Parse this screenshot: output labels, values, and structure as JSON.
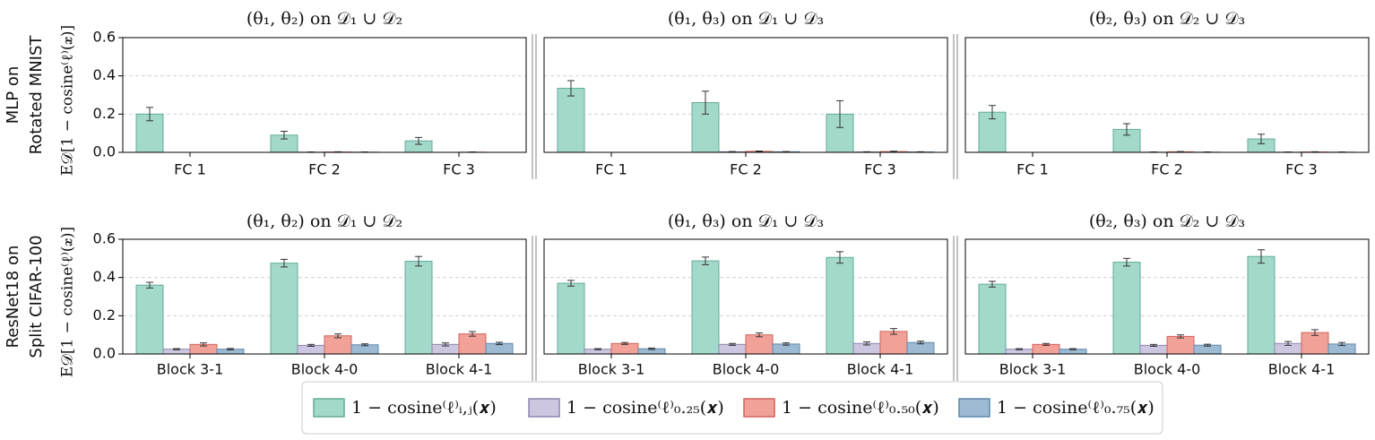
{
  "chart_data": [
    {
      "type": "bar",
      "title": "(θ₁, θ₂) on 𝒟₁ ∪ 𝒟₂",
      "row_label": [
        "MLP on",
        "Rotated MNIST"
      ],
      "ylabel": "E𝒟[1 − cosine⁽ℓ⁾(𝒙)]",
      "legend": "bottom",
      "categories": [
        "FC 1",
        "FC 2",
        "FC 3"
      ],
      "ylim": [
        0,
        0.6
      ],
      "yticks": [
        {
          "value": 0,
          "label": "0.0"
        },
        0.2,
        0.4,
        0.6
      ],
      "grid": true,
      "series": [
        {
          "name": "1 − cosine⁽ℓ⁾ᵢ,ⱼ(𝒙)",
          "color": "#a3d9ca",
          "edgecolor": "#62ab98",
          "values": [
            0.2,
            0.09,
            0.06
          ],
          "errors": [
            0.035,
            0.02,
            0.018
          ]
        },
        {
          "name": "1 − cosine⁽ℓ⁾₀.₂₅(𝒙)",
          "color": "#cdc6e0",
          "edgecolor": "#8f86b0",
          "values": [
            0,
            0.001,
            0
          ],
          "errors": [
            0,
            0.001,
            0
          ]
        },
        {
          "name": "1 − cosine⁽ℓ⁾₀.₅₀(𝒙)",
          "color": "#f2a198",
          "edgecolor": "#cf645a",
          "values": [
            0,
            0.002,
            0.001
          ],
          "errors": [
            0,
            0.001,
            0.001
          ]
        },
        {
          "name": "1 − cosine⁽ℓ⁾₀.₇₅(𝒙)",
          "color": "#9dbad3",
          "edgecolor": "#5e88ad",
          "values": [
            0,
            0.001,
            0
          ],
          "errors": [
            0,
            0.001,
            0
          ]
        }
      ]
    },
    {
      "type": "bar",
      "title": "(θ₁, θ₃) on 𝒟₁ ∪ 𝒟₃",
      "sharey": true,
      "categories": [
        "FC 1",
        "FC 2",
        "FC 3"
      ],
      "ylim": [
        0,
        0.6
      ],
      "yticks": [
        0,
        0.2,
        0.4,
        0.6
      ],
      "grid": true,
      "series": [
        {
          "color": "#a3d9ca",
          "edgecolor": "#62ab98",
          "values": [
            0.335,
            0.26,
            0.2
          ],
          "errors": [
            0.04,
            0.06,
            0.07
          ]
        },
        {
          "color": "#cdc6e0",
          "edgecolor": "#8f86b0",
          "values": [
            0,
            0.003,
            0.002
          ],
          "errors": [
            0,
            0.001,
            0.001
          ]
        },
        {
          "color": "#f2a198",
          "edgecolor": "#cf645a",
          "values": [
            0,
            0.005,
            0.004
          ],
          "errors": [
            0,
            0.002,
            0.002
          ]
        },
        {
          "color": "#9dbad3",
          "edgecolor": "#5e88ad",
          "values": [
            0,
            0.003,
            0.002
          ],
          "errors": [
            0,
            0.001,
            0.001
          ]
        }
      ]
    },
    {
      "type": "bar",
      "title": "(θ₂, θ₃) on 𝒟₂ ∪ 𝒟₃",
      "sharey": true,
      "categories": [
        "FC 1",
        "FC 2",
        "FC 3"
      ],
      "ylim": [
        0,
        0.6
      ],
      "yticks": [
        0,
        0.2,
        0.4,
        0.6
      ],
      "grid": true,
      "series": [
        {
          "color": "#a3d9ca",
          "edgecolor": "#62ab98",
          "values": [
            0.21,
            0.12,
            0.07
          ],
          "errors": [
            0.035,
            0.03,
            0.025
          ]
        },
        {
          "color": "#cdc6e0",
          "edgecolor": "#8f86b0",
          "values": [
            0,
            0.001,
            0.001
          ],
          "errors": [
            0,
            0.001,
            0.001
          ]
        },
        {
          "color": "#f2a198",
          "edgecolor": "#cf645a",
          "values": [
            0,
            0.003,
            0.002
          ],
          "errors": [
            0,
            0.001,
            0.001
          ]
        },
        {
          "color": "#9dbad3",
          "edgecolor": "#5e88ad",
          "values": [
            0,
            0.001,
            0.001
          ],
          "errors": [
            0,
            0.001,
            0.001
          ]
        }
      ]
    },
    {
      "type": "bar",
      "title": "(θ₁, θ₂) on 𝒟₁ ∪ 𝒟₂",
      "row_label": [
        "ResNet18 on",
        "Split CIFAR-100"
      ],
      "ylabel": "E𝒟[1 − cosine⁽ℓ⁾(𝒙)]",
      "categories": [
        "Block 3-1",
        "Block 4-0",
        "Block 4-1"
      ],
      "ylim": [
        0,
        0.6
      ],
      "yticks": [
        {
          "value": 0,
          "label": "0.0"
        },
        0.2,
        0.4,
        0.6
      ],
      "grid": true,
      "series": [
        {
          "color": "#a3d9ca",
          "edgecolor": "#62ab98",
          "values": [
            0.36,
            0.475,
            0.485
          ],
          "errors": [
            0.015,
            0.02,
            0.025
          ]
        },
        {
          "color": "#cdc6e0",
          "edgecolor": "#8f86b0",
          "values": [
            0.025,
            0.045,
            0.05
          ],
          "errors": [
            0.003,
            0.005,
            0.008
          ]
        },
        {
          "color": "#f2a198",
          "edgecolor": "#cf645a",
          "values": [
            0.05,
            0.095,
            0.105
          ],
          "errors": [
            0.008,
            0.01,
            0.012
          ]
        },
        {
          "color": "#9dbad3",
          "edgecolor": "#5e88ad",
          "values": [
            0.025,
            0.048,
            0.055
          ],
          "errors": [
            0.004,
            0.005,
            0.006
          ]
        }
      ]
    },
    {
      "type": "bar",
      "title": "(θ₁, θ₃) on 𝒟₁ ∪ 𝒟₃",
      "sharey": true,
      "categories": [
        "Block 3-1",
        "Block 4-0",
        "Block 4-1"
      ],
      "ylim": [
        0,
        0.6
      ],
      "yticks": [
        0,
        0.2,
        0.4,
        0.6
      ],
      "grid": true,
      "series": [
        {
          "color": "#a3d9ca",
          "edgecolor": "#62ab98",
          "values": [
            0.37,
            0.487,
            0.505
          ],
          "errors": [
            0.015,
            0.02,
            0.03
          ]
        },
        {
          "color": "#cdc6e0",
          "edgecolor": "#8f86b0",
          "values": [
            0.025,
            0.05,
            0.055
          ],
          "errors": [
            0.003,
            0.005,
            0.008
          ]
        },
        {
          "color": "#f2a198",
          "edgecolor": "#cf645a",
          "values": [
            0.055,
            0.1,
            0.118
          ],
          "errors": [
            0.005,
            0.01,
            0.015
          ]
        },
        {
          "color": "#9dbad3",
          "edgecolor": "#5e88ad",
          "values": [
            0.027,
            0.052,
            0.06
          ],
          "errors": [
            0.004,
            0.006,
            0.007
          ]
        }
      ]
    },
    {
      "type": "bar",
      "title": "(θ₂, θ₃) on 𝒟₂ ∪ 𝒟₃",
      "sharey": true,
      "categories": [
        "Block 3-1",
        "Block 4-0",
        "Block 4-1"
      ],
      "ylim": [
        0,
        0.6
      ],
      "yticks": [
        0,
        0.2,
        0.4,
        0.6
      ],
      "grid": true,
      "series": [
        {
          "color": "#a3d9ca",
          "edgecolor": "#62ab98",
          "values": [
            0.365,
            0.48,
            0.51
          ],
          "errors": [
            0.015,
            0.02,
            0.035
          ]
        },
        {
          "color": "#cdc6e0",
          "edgecolor": "#8f86b0",
          "values": [
            0.025,
            0.045,
            0.055
          ],
          "errors": [
            0.003,
            0.005,
            0.01
          ]
        },
        {
          "color": "#f2a198",
          "edgecolor": "#cf645a",
          "values": [
            0.05,
            0.092,
            0.112
          ],
          "errors": [
            0.005,
            0.008,
            0.015
          ]
        },
        {
          "color": "#9dbad3",
          "edgecolor": "#5e88ad",
          "values": [
            0.025,
            0.046,
            0.052
          ],
          "errors": [
            0.003,
            0.005,
            0.008
          ]
        }
      ]
    }
  ]
}
